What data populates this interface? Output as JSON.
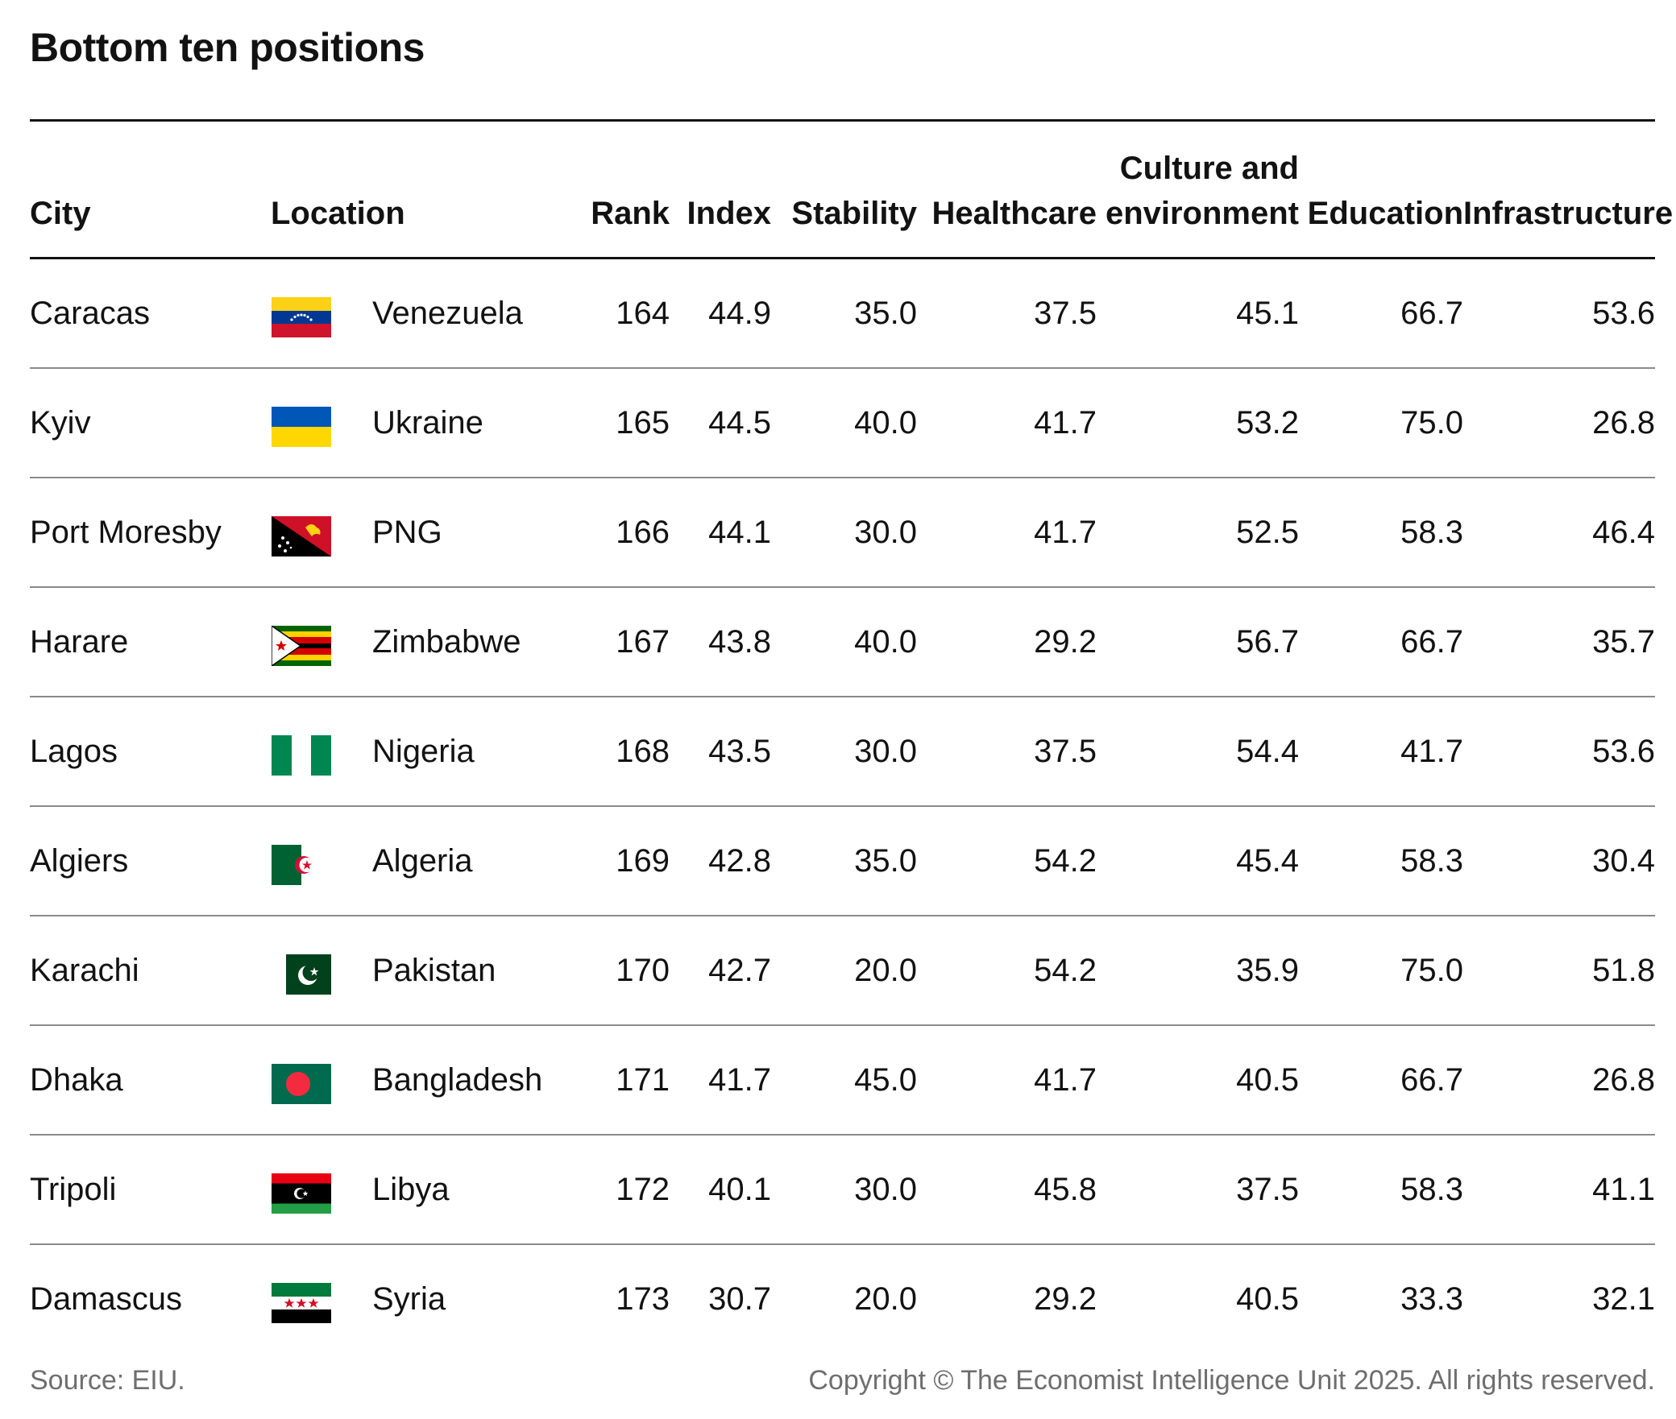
{
  "title": "Bottom ten positions",
  "source": "Source: EIU.",
  "copyright": "Copyright © The Economist Intelligence Unit 2025. All rights reserved.",
  "chart_data": {
    "type": "table",
    "columns": {
      "city": "City",
      "location": "Location",
      "rank": "Rank",
      "index": "Index",
      "stability": "Stability",
      "healthcare": "Healthcare",
      "culture_1": "Culture and",
      "culture_2": "environment",
      "education": "Education",
      "infrastructure": "Infrastructure"
    },
    "rows": [
      {
        "city": "Caracas",
        "location": "Venezuela",
        "flag": "venezuela-flag-icon",
        "rank": "164",
        "index": "44.9",
        "stability": "35.0",
        "healthcare": "37.5",
        "culture": "45.1",
        "education": "66.7",
        "infrastructure": "53.6"
      },
      {
        "city": "Kyiv",
        "location": "Ukraine",
        "flag": "ukraine-flag-icon",
        "rank": "165",
        "index": "44.5",
        "stability": "40.0",
        "healthcare": "41.7",
        "culture": "53.2",
        "education": "75.0",
        "infrastructure": "26.8"
      },
      {
        "city": "Port Moresby",
        "location": "PNG",
        "flag": "png-flag-icon",
        "rank": "166",
        "index": "44.1",
        "stability": "30.0",
        "healthcare": "41.7",
        "culture": "52.5",
        "education": "58.3",
        "infrastructure": "46.4"
      },
      {
        "city": "Harare",
        "location": "Zimbabwe",
        "flag": "zimbabwe-flag-icon",
        "rank": "167",
        "index": "43.8",
        "stability": "40.0",
        "healthcare": "29.2",
        "culture": "56.7",
        "education": "66.7",
        "infrastructure": "35.7"
      },
      {
        "city": "Lagos",
        "location": "Nigeria",
        "flag": "nigeria-flag-icon",
        "rank": "168",
        "index": "43.5",
        "stability": "30.0",
        "healthcare": "37.5",
        "culture": "54.4",
        "education": "41.7",
        "infrastructure": "53.6"
      },
      {
        "city": "Algiers",
        "location": "Algeria",
        "flag": "algeria-flag-icon",
        "rank": "169",
        "index": "42.8",
        "stability": "35.0",
        "healthcare": "54.2",
        "culture": "45.4",
        "education": "58.3",
        "infrastructure": "30.4"
      },
      {
        "city": "Karachi",
        "location": "Pakistan",
        "flag": "pakistan-flag-icon",
        "rank": "170",
        "index": "42.7",
        "stability": "20.0",
        "healthcare": "54.2",
        "culture": "35.9",
        "education": "75.0",
        "infrastructure": "51.8"
      },
      {
        "city": "Dhaka",
        "location": "Bangladesh",
        "flag": "bangladesh-flag-icon",
        "rank": "171",
        "index": "41.7",
        "stability": "45.0",
        "healthcare": "41.7",
        "culture": "40.5",
        "education": "66.7",
        "infrastructure": "26.8"
      },
      {
        "city": "Tripoli",
        "location": "Libya",
        "flag": "libya-flag-icon",
        "rank": "172",
        "index": "40.1",
        "stability": "30.0",
        "healthcare": "45.8",
        "culture": "37.5",
        "education": "58.3",
        "infrastructure": "41.1"
      },
      {
        "city": "Damascus",
        "location": "Syria",
        "flag": "syria-flag-icon",
        "rank": "173",
        "index": "30.7",
        "stability": "20.0",
        "healthcare": "29.2",
        "culture": "40.5",
        "education": "33.3",
        "infrastructure": "32.1"
      }
    ]
  }
}
